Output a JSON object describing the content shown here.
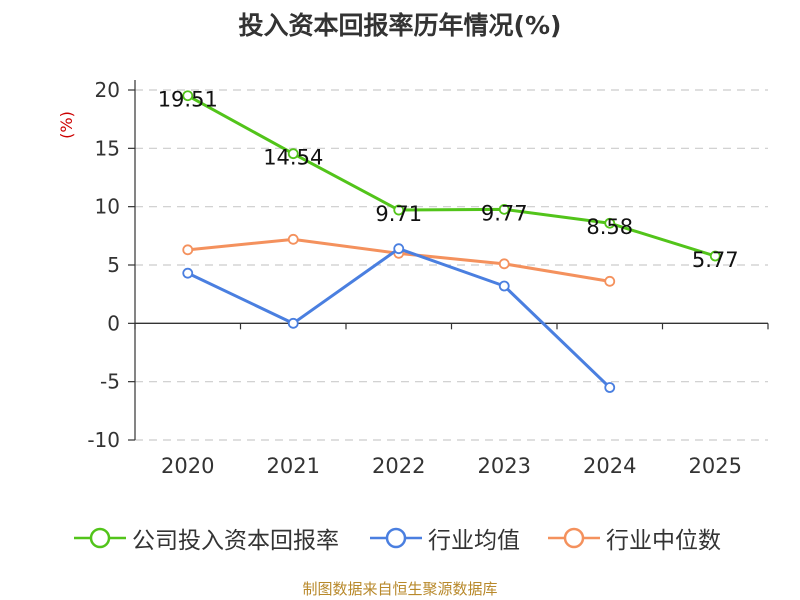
{
  "title": "投入资本回报率历年情况(%)",
  "footer": "制图数据来自恒生聚源数据库",
  "colors": {
    "company": "#52c41a",
    "industry_avg": "#4a7fe0",
    "industry_median": "#f4915d",
    "axis": "#333333",
    "grid": "#cccccc",
    "unit": "#cc0000"
  },
  "chart_data": {
    "type": "line",
    "title": "投入资本回报率历年情况(%)",
    "ylabel": "(%)",
    "xlabel": "",
    "ylim": [
      -10,
      20
    ],
    "yticks": [
      20,
      15,
      10,
      5,
      0,
      -5,
      -10
    ],
    "categories": [
      "2020",
      "2021",
      "2022",
      "2023",
      "2024",
      "2025"
    ],
    "grid": true,
    "legend_position": "bottom",
    "series": [
      {
        "name": "公司投入资本回报率",
        "values": [
          19.51,
          14.54,
          9.71,
          9.77,
          8.58,
          5.77
        ],
        "labels": [
          "19.51",
          "14.54",
          "9.71",
          "9.77",
          "8.58",
          "5.77"
        ]
      },
      {
        "name": "行业均值",
        "values": [
          4.3,
          0.0,
          6.4,
          3.2,
          -5.5,
          null
        ]
      },
      {
        "name": "行业中位数",
        "values": [
          6.3,
          7.2,
          6.0,
          5.1,
          3.6,
          null
        ]
      }
    ]
  }
}
